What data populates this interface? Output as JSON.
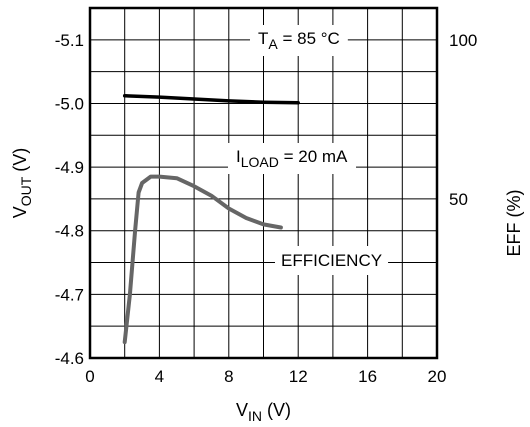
{
  "chart_data": {
    "type": "line",
    "x": {
      "label_main": "V",
      "label_sub": "IN",
      "label_unit": " (V)",
      "range": [
        0,
        20
      ],
      "ticks": [
        0,
        4,
        8,
        12,
        16,
        20
      ],
      "gridlines": [
        0,
        2,
        4,
        6,
        8,
        10,
        12,
        14,
        16,
        18,
        20
      ]
    },
    "y_left": {
      "label_main": "V",
      "label_sub": "OUT",
      "label_unit": " (V)",
      "range": [
        -4.6,
        -5.15
      ],
      "ticks": [
        -5.1,
        -5.0,
        -4.9,
        -4.8,
        -4.7,
        -4.6
      ],
      "tick_labels": [
        "-5.1",
        "-5.0",
        "-4.9",
        "-4.8",
        "-4.7",
        "-4.6"
      ]
    },
    "y_right": {
      "label": "EFF (%)",
      "range": [
        0,
        110
      ],
      "ticks": [
        50,
        100
      ],
      "tick_labels": [
        "50",
        "100"
      ]
    },
    "grid": true,
    "annotations": {
      "temp_main": "T",
      "temp_sub": "A",
      "temp_rest": " = 85 °C",
      "load_main": "I",
      "load_sub": "LOAD",
      "load_rest": " = 20 mA",
      "efficiency_label": "EFFICIENCY"
    },
    "series": [
      {
        "axis": "left",
        "color": "#000000",
        "x": [
          2,
          4,
          6,
          8,
          10,
          12
        ],
        "y": [
          -5.012,
          -5.01,
          -5.007,
          -5.004,
          -5.002,
          -5.001
        ]
      },
      {
        "axis": "right",
        "color": "#666666",
        "x": [
          2,
          2.3,
          2.6,
          2.8,
          3.0,
          3.5,
          4,
          5,
          6,
          7,
          8,
          9,
          10,
          11
        ],
        "y": [
          5,
          20,
          40,
          52,
          55,
          57,
          57,
          56.5,
          54,
          51,
          47,
          44,
          42,
          41
        ]
      }
    ]
  }
}
